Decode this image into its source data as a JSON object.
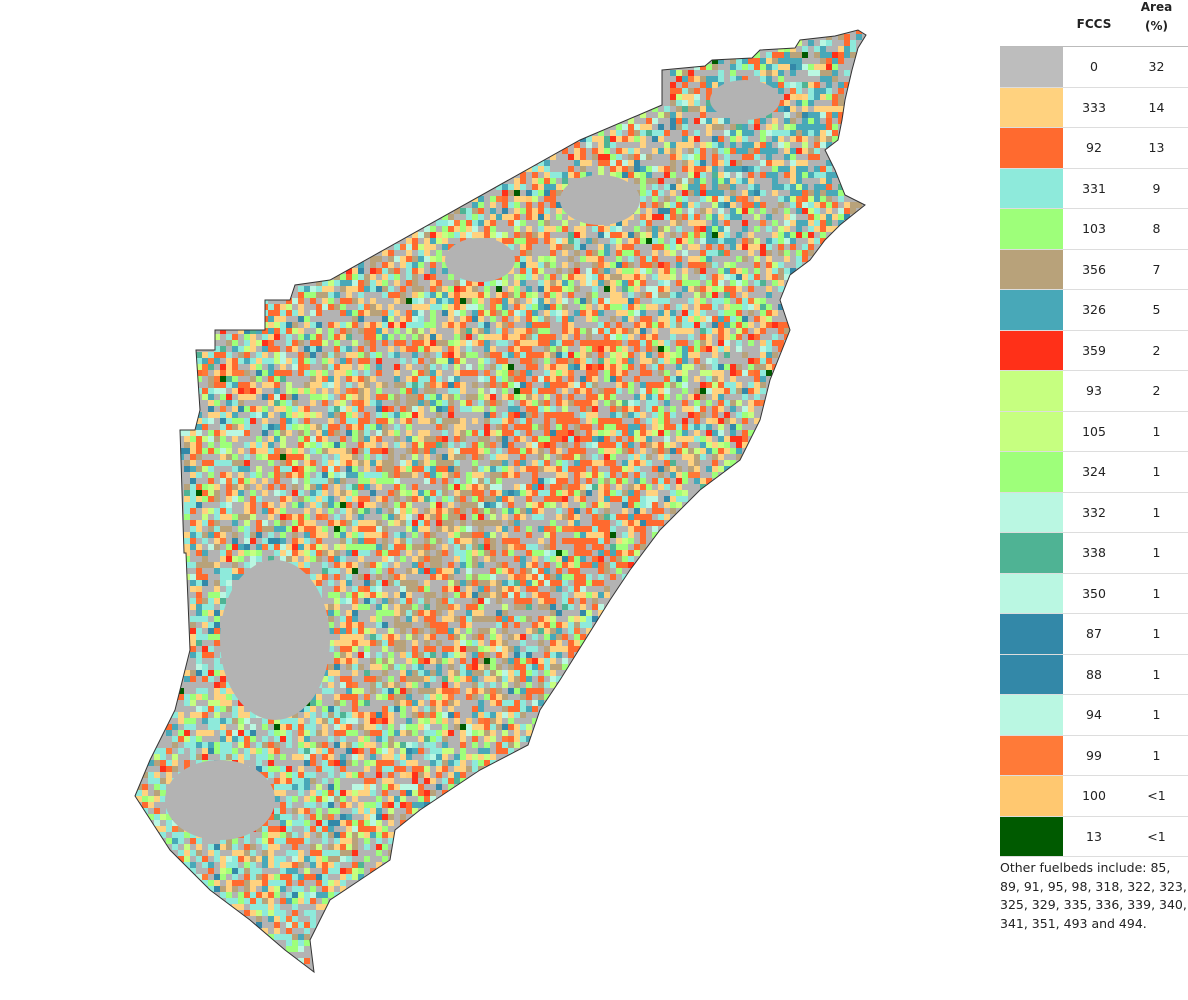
{
  "map": {
    "base_color": "#b3b3b3",
    "outline_color": "#333333"
  },
  "legend": {
    "header_fccs": "FCCS",
    "header_area": "Area (%)",
    "rows": [
      {
        "code": "0",
        "area": "32",
        "color": "#bdbdbd"
      },
      {
        "code": "333",
        "area": "14",
        "color": "#ffd27f"
      },
      {
        "code": "92",
        "area": "13",
        "color": "#ff6a2f"
      },
      {
        "code": "331",
        "area": "9",
        "color": "#8eeadb"
      },
      {
        "code": "103",
        "area": "8",
        "color": "#9eff7a"
      },
      {
        "code": "356",
        "area": "7",
        "color": "#b8a27a"
      },
      {
        "code": "326",
        "area": "5",
        "color": "#48a8b8"
      },
      {
        "code": "359",
        "area": "2",
        "color": "#ff3018"
      },
      {
        "code": "93",
        "area": "2",
        "color": "#c6ff80"
      },
      {
        "code": "105",
        "area": "1",
        "color": "#c6ff80"
      },
      {
        "code": "324",
        "area": "1",
        "color": "#9eff7a"
      },
      {
        "code": "332",
        "area": "1",
        "color": "#baf7e2"
      },
      {
        "code": "338",
        "area": "1",
        "color": "#4fb394"
      },
      {
        "code": "350",
        "area": "1",
        "color": "#baf7e2"
      },
      {
        "code": "87",
        "area": "1",
        "color": "#3388a8"
      },
      {
        "code": "88",
        "area": "1",
        "color": "#3388a8"
      },
      {
        "code": "94",
        "area": "1",
        "color": "#baf7e2"
      },
      {
        "code": "99",
        "area": "1",
        "color": "#ff7a38"
      },
      {
        "code": "100",
        "area": "<1",
        "color": "#ffc870"
      },
      {
        "code": "13",
        "area": "<1",
        "color": "#005a00"
      }
    ],
    "note": "Other fuelbeds include: 85, 89, 91, 95, 98, 318, 322, 323, 325, 329, 335, 336, 339, 340, 341, 351, 493 and 494."
  }
}
